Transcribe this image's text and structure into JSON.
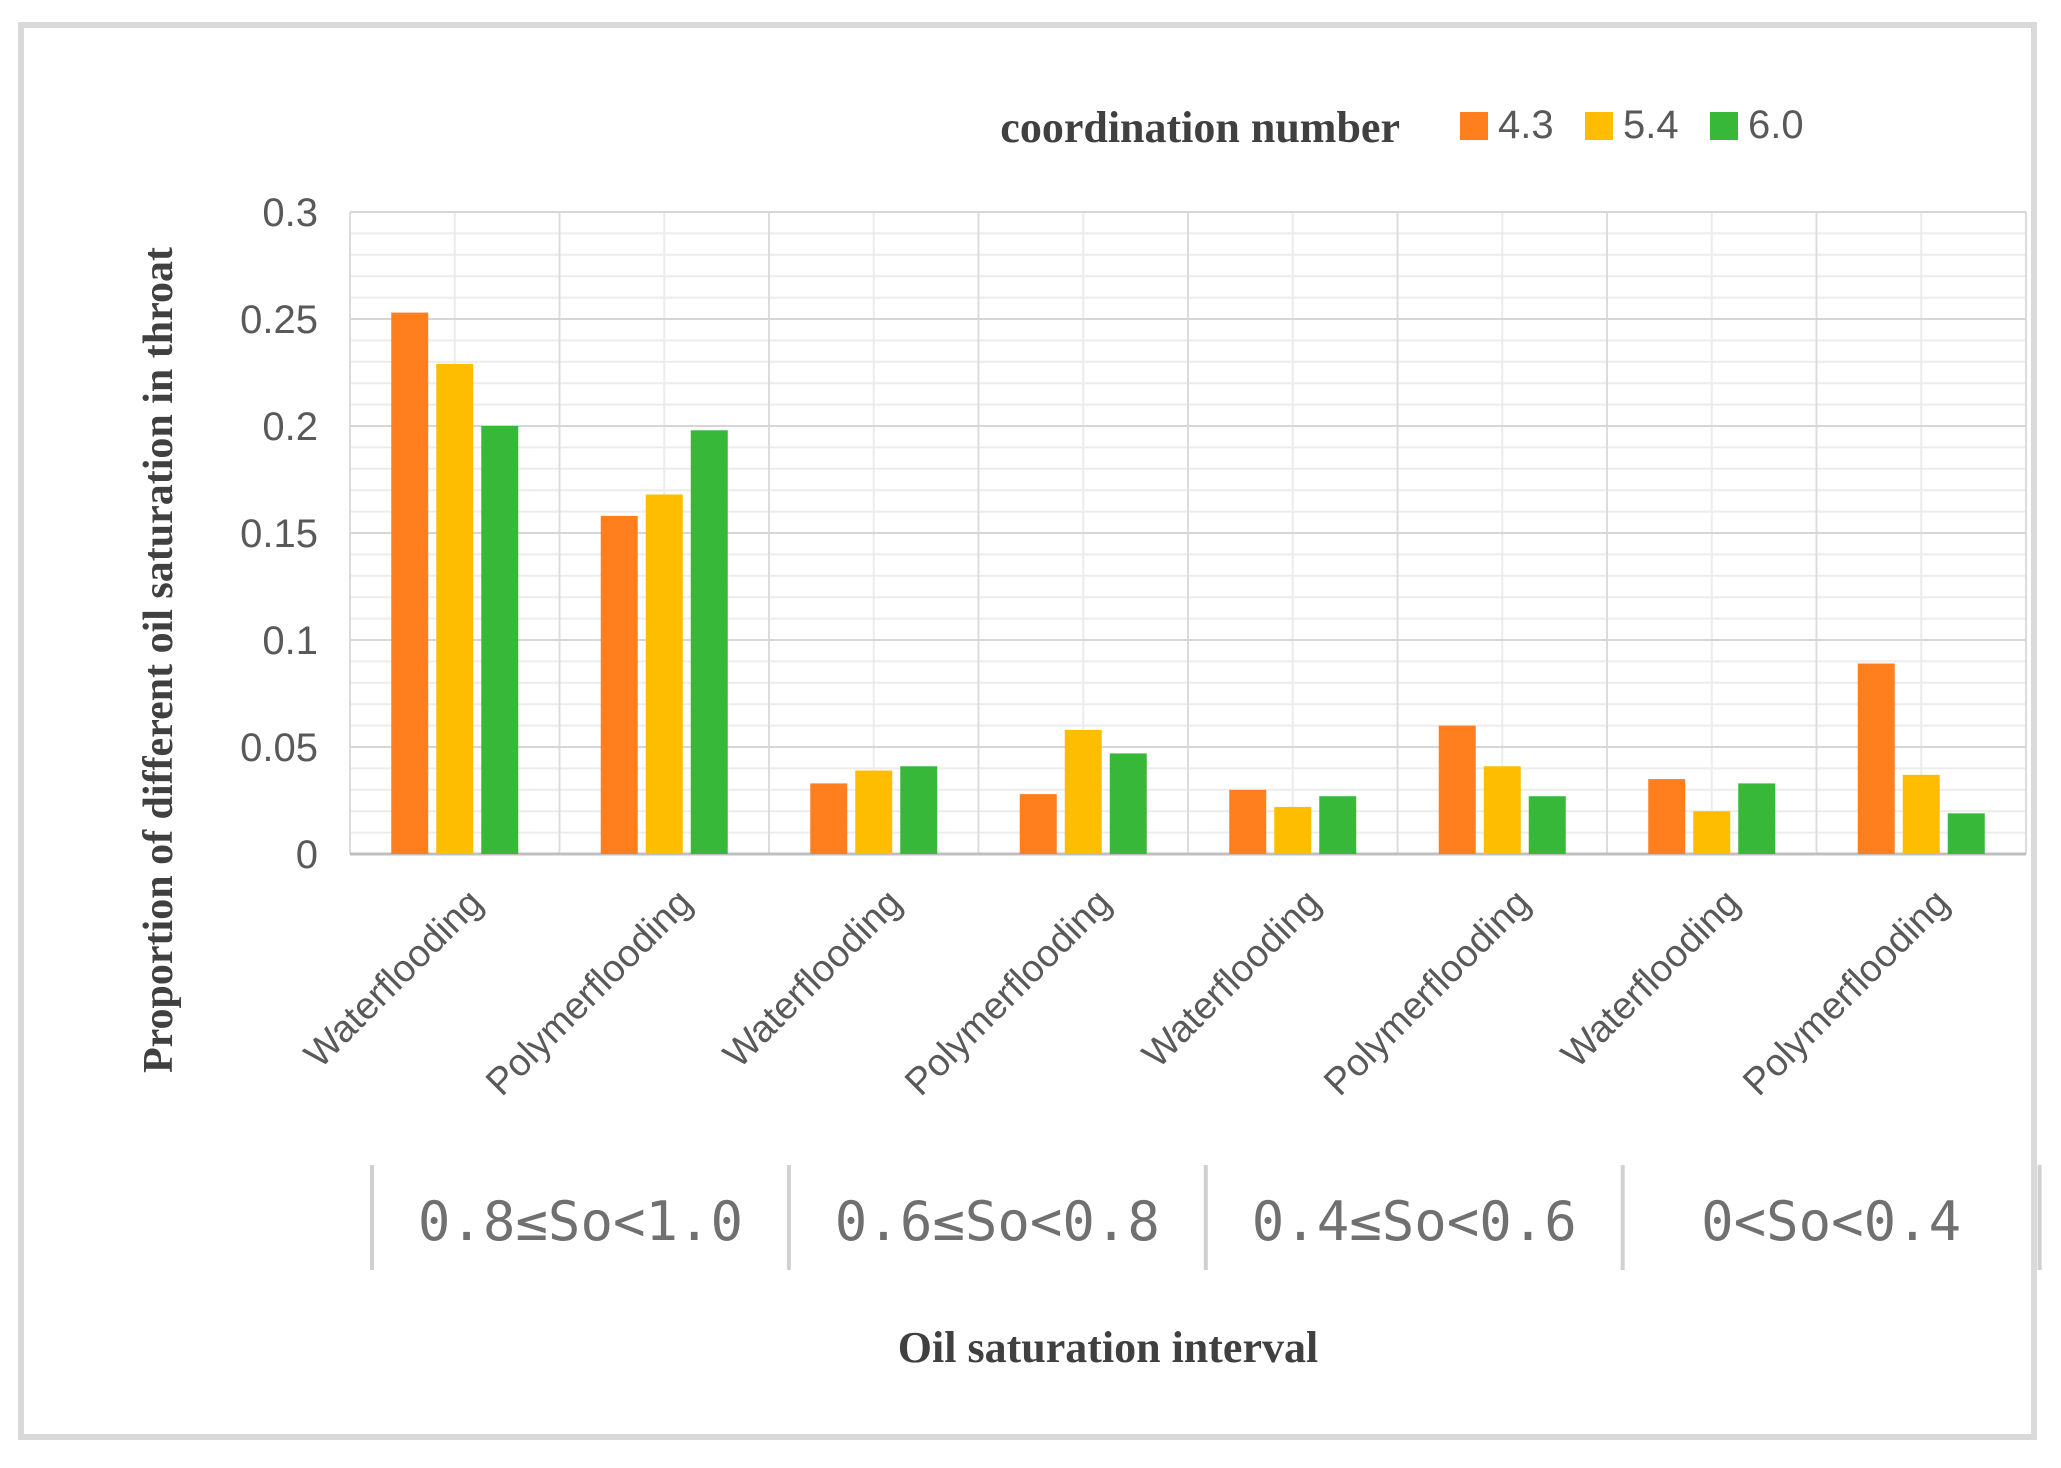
{
  "chart_data": {
    "type": "bar",
    "legend": {
      "title": "coordination number",
      "placement": "top-right"
    },
    "series": [
      {
        "name": "4.3",
        "color": "#FF7F1E",
        "values": [
          0.253,
          0.158,
          0.033,
          0.028,
          0.03,
          0.06,
          0.035,
          0.089
        ]
      },
      {
        "name": "5.4",
        "color": "#FFBD00",
        "values": [
          0.229,
          0.168,
          0.039,
          0.058,
          0.022,
          0.041,
          0.02,
          0.037
        ]
      },
      {
        "name": "6.0",
        "color": "#38B838",
        "values": [
          0.2,
          0.198,
          0.041,
          0.047,
          0.027,
          0.027,
          0.033,
          0.019
        ]
      }
    ],
    "categories": [
      "Waterflooding",
      "Polymerflooding",
      "Waterflooding",
      "Polymerflooding",
      "Waterflooding",
      "Polymerflooding",
      "Waterflooding",
      "Polymerflooding"
    ],
    "groups": [
      "0.8≤So<1.0",
      "0.6≤So<0.8",
      "0.4≤So<0.6",
      "0<So<0.4"
    ],
    "ylabel": "Proportion of different oil saturation in throat",
    "xlabel": "Oil saturation interval",
    "ylim": [
      0,
      0.3
    ],
    "yticks": [
      "0",
      "0.05",
      "0.1",
      "0.15",
      "0.2",
      "0.25",
      "0.3"
    ],
    "grid": true
  }
}
